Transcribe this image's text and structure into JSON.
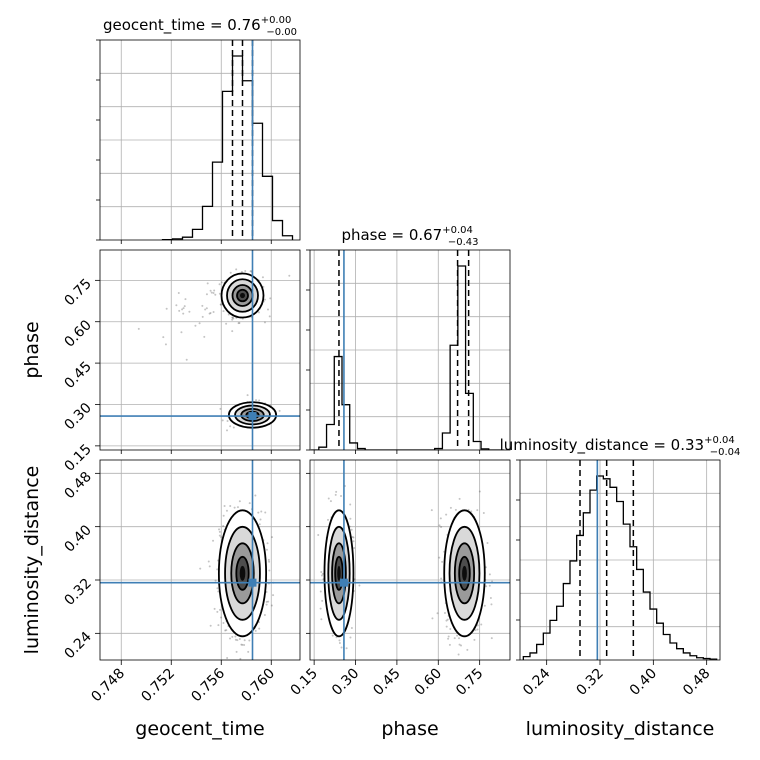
{
  "chart_data": {
    "type": "corner",
    "parameters": [
      "geocent_time",
      "phase",
      "luminosity_distance"
    ],
    "truths": [
      0.7585,
      0.258,
      0.316
    ],
    "truth_color": "#3f7fb5",
    "titles": [
      {
        "name": "geocent_time",
        "value": "0.76",
        "plus": "+0.00",
        "minus": "−0.00"
      },
      {
        "name": "phase",
        "value": "0.67",
        "plus": "+0.04",
        "minus": "−0.43"
      },
      {
        "name": "luminosity_distance",
        "value": "0.33",
        "plus": "+0.04",
        "minus": "−0.04"
      }
    ],
    "axes": [
      {
        "label": "geocent_time",
        "lim": [
          0.7463,
          0.7623
        ],
        "ticks": [
          0.748,
          0.752,
          0.756,
          0.76
        ],
        "tick_labels": [
          "0.748",
          "0.752",
          "0.756",
          "0.760"
        ]
      },
      {
        "label": "phase",
        "lim": [
          0.135,
          0.86
        ],
        "ticks": [
          0.15,
          0.3,
          0.45,
          0.6,
          0.75
        ],
        "tick_labels": [
          "0.15",
          "0.30",
          "0.45",
          "0.60",
          "0.75"
        ]
      },
      {
        "label": "luminosity_distance",
        "lim": [
          0.2,
          0.5
        ],
        "ticks": [
          0.24,
          0.32,
          0.4,
          0.48
        ],
        "tick_labels": [
          "0.24",
          "0.32",
          "0.40",
          "0.48"
        ]
      }
    ],
    "histograms": [
      {
        "param": "geocent_time",
        "x": [
          0.7517,
          0.7525,
          0.7533,
          0.7541,
          0.7549,
          0.7557,
          0.7565,
          0.7573,
          0.7581,
          0.7589,
          0.7597,
          0.7605,
          0.7613
        ],
        "counts": [
          1,
          3,
          8,
          30,
          95,
          220,
          420,
          520,
          450,
          330,
          180,
          55,
          12
        ],
        "quantiles": [
          0.7569,
          0.7577,
          0.7585
        ]
      },
      {
        "param": "phase",
        "x": [
          0.153,
          0.181,
          0.209,
          0.237,
          0.265,
          0.293,
          0.321,
          0.349,
          0.377,
          0.405,
          0.433,
          0.461,
          0.489,
          0.517,
          0.545,
          0.573,
          0.601,
          0.629,
          0.657,
          0.685,
          0.713,
          0.741,
          0.769,
          0.797,
          0.825
        ],
        "counts": [
          0,
          10,
          90,
          330,
          160,
          25,
          5,
          0,
          0,
          0,
          0,
          0,
          0,
          0,
          0,
          0,
          5,
          60,
          370,
          650,
          200,
          30,
          4,
          0,
          0
        ],
        "quantiles": [
          0.24,
          0.67,
          0.71
        ]
      },
      {
        "param": "luminosity_distance",
        "x": [
          0.21,
          0.22,
          0.23,
          0.24,
          0.25,
          0.26,
          0.27,
          0.28,
          0.29,
          0.3,
          0.31,
          0.32,
          0.33,
          0.34,
          0.35,
          0.36,
          0.37,
          0.38,
          0.39,
          0.4,
          0.41,
          0.42,
          0.43,
          0.44,
          0.45,
          0.46,
          0.47,
          0.48,
          0.49
        ],
        "counts": [
          12,
          25,
          55,
          95,
          140,
          190,
          270,
          350,
          440,
          520,
          600,
          650,
          640,
          610,
          560,
          480,
          400,
          320,
          240,
          180,
          130,
          90,
          60,
          40,
          25,
          15,
          8,
          5,
          3
        ],
        "quantiles": [
          0.29,
          0.33,
          0.37
        ]
      }
    ],
    "scatter_panels": [
      {
        "x": "geocent_time",
        "y": "phase",
        "clusters": [
          {
            "cx": 0.7577,
            "cy": 0.695,
            "sx": 0.0008,
            "sy": 0.038,
            "n": 320,
            "rho": 0.0
          },
          {
            "cx": 0.7585,
            "cy": 0.262,
            "sx": 0.0009,
            "sy": 0.022,
            "n": 180,
            "rho": 0.0
          },
          {
            "cx": 0.7545,
            "cy": 0.64,
            "sx": 0.0022,
            "sy": 0.05,
            "n": 40,
            "rho": 0.6
          }
        ]
      },
      {
        "x": "geocent_time",
        "y": "luminosity_distance",
        "clusters": [
          {
            "cx": 0.7577,
            "cy": 0.33,
            "sx": 0.0009,
            "sy": 0.045,
            "n": 700,
            "rho": 0.0
          }
        ]
      },
      {
        "x": "phase",
        "y": "luminosity_distance",
        "clusters": [
          {
            "cx": 0.24,
            "cy": 0.33,
            "sx": 0.025,
            "sy": 0.045,
            "n": 260,
            "rho": 0.0
          },
          {
            "cx": 0.695,
            "cy": 0.33,
            "sx": 0.035,
            "sy": 0.045,
            "n": 520,
            "rho": 0.0
          }
        ]
      }
    ]
  }
}
